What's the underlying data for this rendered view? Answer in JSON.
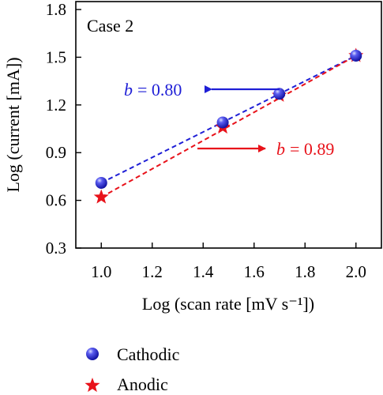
{
  "chart_data": {
    "type": "scatter",
    "panel_label": "Case 2",
    "xlabel": "Log (scan rate [mV s⁻¹])",
    "ylabel": "Log (current [mA])",
    "xlim": [
      0.9,
      2.1
    ],
    "ylim": [
      0.3,
      1.85
    ],
    "xticks": [
      1.0,
      1.2,
      1.4,
      1.6,
      1.8,
      2.0
    ],
    "xtick_labels": [
      "1.0",
      "1.2",
      "1.4",
      "1.6",
      "1.8",
      "2.0"
    ],
    "yticks": [
      0.3,
      0.6,
      0.9,
      1.2,
      1.5,
      1.8
    ],
    "ytick_labels": [
      "0.3",
      "0.6",
      "0.9",
      "1.2",
      "1.5",
      "1.8"
    ],
    "grid": false,
    "legend_position": "bottom",
    "series": [
      {
        "name": "Cathodic",
        "marker": "circle",
        "color": "#1f1fd6",
        "x": [
          1.0,
          1.477,
          1.699,
          2.0
        ],
        "y": [
          0.71,
          1.09,
          1.27,
          1.51
        ],
        "fit": {
          "x0": 1.0,
          "y0": 0.71,
          "x1": 2.0,
          "y1": 1.51
        }
      },
      {
        "name": "Anodic",
        "marker": "star",
        "color": "#e8121a",
        "x": [
          1.0,
          1.477,
          1.699,
          2.0
        ],
        "y": [
          0.62,
          1.06,
          1.26,
          1.51
        ],
        "fit": {
          "x0": 1.0,
          "y0": 0.62,
          "x1": 2.0,
          "y1": 1.51
        }
      }
    ],
    "annotations": [
      {
        "series": "Cathodic",
        "prefix": "b",
        "value": "= 0.80",
        "arrow": "left",
        "color": "#1f1fd6"
      },
      {
        "series": "Anodic",
        "prefix": "b",
        "value": "= 0.89",
        "arrow": "right",
        "color": "#e8121a"
      }
    ]
  }
}
